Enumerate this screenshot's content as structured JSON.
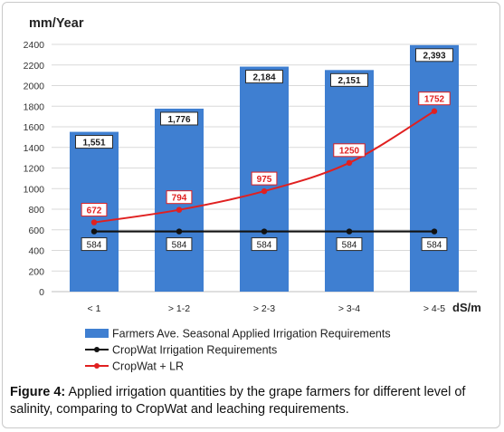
{
  "chart_data": {
    "type": "bar",
    "ylabel": "mm/Year",
    "xlabel": "dS/m",
    "ylim": [
      0,
      2400
    ],
    "yticks": [
      0,
      200,
      400,
      600,
      800,
      1000,
      1200,
      1400,
      1600,
      1800,
      2000,
      2200,
      2400
    ],
    "grid": true,
    "legend_position": "bottom",
    "categories": [
      "< 1",
      "> 1-2",
      "> 2-3",
      "> 3-4",
      "> 4-5"
    ],
    "series": [
      {
        "name": "Farmers Ave. Seasonal Applied Irrigation Requirements",
        "kind": "bar",
        "color": "#3f7fd1",
        "values": [
          1551,
          1776,
          2184,
          2151,
          2393
        ],
        "labels": [
          "1,551",
          "1,776",
          "2,184",
          "2,151",
          "2,393"
        ]
      },
      {
        "name": "CropWat Irrigation Requirements",
        "kind": "line",
        "color": "#111111",
        "values": [
          584,
          584,
          584,
          584,
          584
        ],
        "labels": [
          "584",
          "584",
          "584",
          "584",
          "584"
        ]
      },
      {
        "name": "CropWat + LR",
        "kind": "line",
        "color": "#e02020",
        "values": [
          672,
          794,
          975,
          1250,
          1752
        ],
        "labels": [
          "672",
          "794",
          "975",
          "1250",
          "1752"
        ]
      }
    ]
  },
  "caption": {
    "label": "Figure 4:",
    "text": " Applied irrigation quantities by the grape farmers for different level of salinity, comparing to CropWat and leaching requirements."
  }
}
